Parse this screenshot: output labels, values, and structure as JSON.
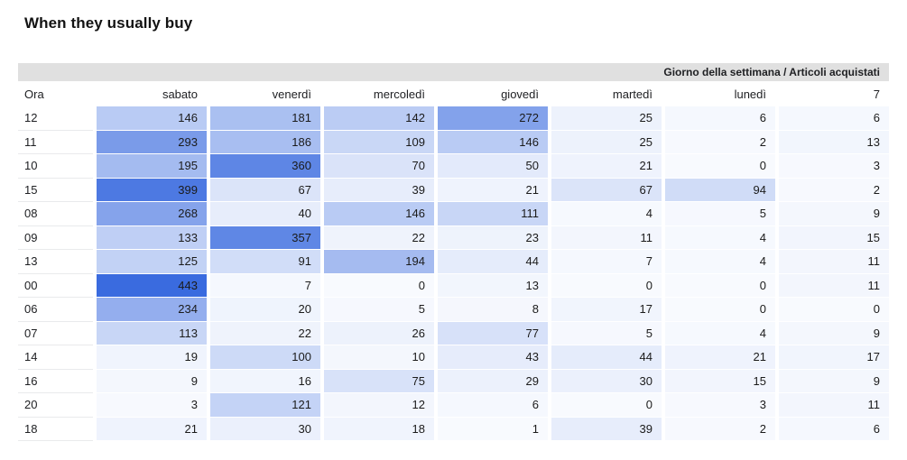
{
  "title": "When they usually buy",
  "chart_data": {
    "type": "heatmap",
    "title": "When they usually buy",
    "corner_label": "Giorno della settimana / Articoli acquistati",
    "row_label": "Ora",
    "columns": [
      "sabato",
      "venerdì",
      "mercoledì",
      "giovedì",
      "martedì",
      "lunedì",
      "7"
    ],
    "rows": [
      "12",
      "11",
      "10",
      "15",
      "08",
      "09",
      "13",
      "00",
      "06",
      "07",
      "14",
      "16",
      "20",
      "18"
    ],
    "values": [
      [
        146,
        181,
        142,
        272,
        25,
        6,
        6
      ],
      [
        293,
        186,
        109,
        146,
        25,
        2,
        13
      ],
      [
        195,
        360,
        70,
        50,
        21,
        0,
        3
      ],
      [
        399,
        67,
        39,
        21,
        67,
        94,
        2
      ],
      [
        268,
        40,
        146,
        111,
        4,
        5,
        9
      ],
      [
        133,
        357,
        22,
        23,
        11,
        4,
        15
      ],
      [
        125,
        91,
        194,
        44,
        7,
        4,
        11
      ],
      [
        443,
        7,
        0,
        13,
        0,
        0,
        11
      ],
      [
        234,
        20,
        5,
        8,
        17,
        0,
        0
      ],
      [
        113,
        22,
        26,
        77,
        5,
        4,
        9
      ],
      [
        19,
        100,
        10,
        43,
        44,
        21,
        17
      ],
      [
        9,
        16,
        75,
        29,
        30,
        15,
        9
      ],
      [
        3,
        121,
        12,
        6,
        0,
        3,
        11
      ],
      [
        21,
        30,
        18,
        1,
        39,
        2,
        6
      ]
    ],
    "color_scale": {
      "min": 0,
      "max": 443,
      "min_color": "#F8FAFE",
      "max_color": "#3A6BDF"
    },
    "layout": {
      "legend_position": "none",
      "grid": false,
      "band_color": "#E0E0E0",
      "row_separator_color": "#E9EAEC"
    }
  }
}
